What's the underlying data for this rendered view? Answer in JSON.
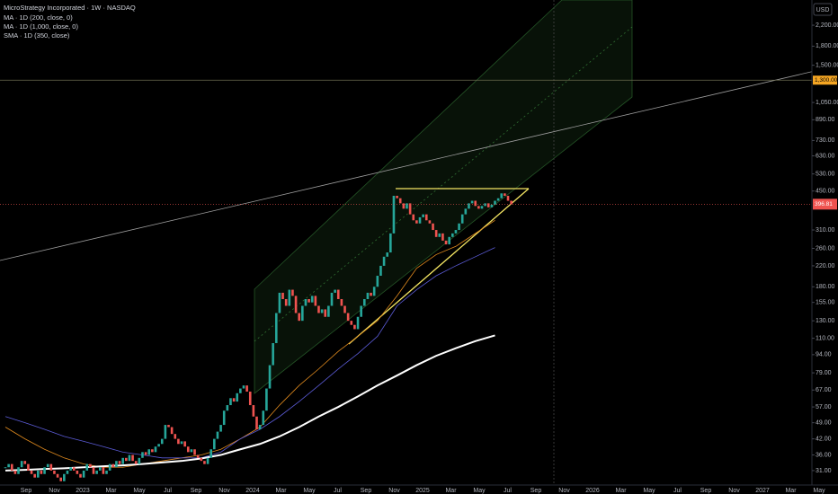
{
  "chart_data": {
    "type": "candlestick",
    "title": "MicroStrategy Incorporated · 1W · NASDAQ",
    "indicator_labels": [
      "MA · 1D (200, close, 0)",
      "MA · 1D (1,000, close, 0)",
      "SMA · 1D (350, close)"
    ],
    "currency": "USD",
    "log_scale": true,
    "ylim": [
      27,
      2800
    ],
    "yticks": [
      {
        "value": 2200,
        "label": "2,200.00"
      },
      {
        "value": 1800,
        "label": "1,800.00"
      },
      {
        "value": 1500,
        "label": "1,500.00"
      },
      {
        "value": 1050,
        "label": "1,050.00"
      },
      {
        "value": 890,
        "label": "890.00"
      },
      {
        "value": 730,
        "label": "730.00"
      },
      {
        "value": 630,
        "label": "630.00"
      },
      {
        "value": 530,
        "label": "530.00"
      },
      {
        "value": 450,
        "label": "450.00"
      },
      {
        "value": 310,
        "label": "310.00"
      },
      {
        "value": 260,
        "label": "260.00"
      },
      {
        "value": 220,
        "label": "220.00"
      },
      {
        "value": 180,
        "label": "180.00"
      },
      {
        "value": 155,
        "label": "155.00"
      },
      {
        "value": 130,
        "label": "130.00"
      },
      {
        "value": 110,
        "label": "110.00"
      },
      {
        "value": 94,
        "label": "94.00"
      },
      {
        "value": 79,
        "label": "79.00"
      },
      {
        "value": 67,
        "label": "67.00"
      },
      {
        "value": 57,
        "label": "57.00"
      },
      {
        "value": 49,
        "label": "49.00"
      },
      {
        "value": 42,
        "label": "42.00"
      },
      {
        "value": 36,
        "label": "36.00"
      },
      {
        "value": 31,
        "label": "31.00"
      }
    ],
    "hline": {
      "value": 1300,
      "label": "1,300.00"
    },
    "price_label": {
      "value": 396.81,
      "label": "396.81"
    },
    "x_labels": [
      "Sep",
      "Nov",
      "2023",
      "Mar",
      "May",
      "Jul",
      "Sep",
      "Nov",
      "2024",
      "Mar",
      "May",
      "Jul",
      "Sep",
      "Nov",
      "2025",
      "Mar",
      "May",
      "Jul",
      "Sep",
      "Nov",
      "2026",
      "Mar",
      "May",
      "Jul",
      "Sep",
      "Nov",
      "2027",
      "Mar",
      "May"
    ],
    "up_color": "#26a69a",
    "down_color": "#ef5350",
    "closes": [
      32,
      33,
      31,
      30,
      32,
      34,
      33,
      31,
      30,
      29,
      31,
      30,
      32,
      33,
      31,
      30,
      29,
      28,
      30,
      31,
      32,
      31,
      30,
      29,
      31,
      33,
      32,
      30,
      31,
      32,
      30,
      31,
      33,
      32,
      34,
      33,
      35,
      34,
      36,
      34,
      33,
      35,
      37,
      36,
      38,
      37,
      39,
      40,
      42,
      48,
      47,
      44,
      42,
      40,
      41,
      39,
      37,
      38,
      36,
      35,
      34,
      33,
      35,
      38,
      42,
      45,
      48,
      55,
      58,
      62,
      60,
      65,
      68,
      70,
      66,
      58,
      52,
      46,
      48,
      55,
      68,
      85,
      105,
      140,
      170,
      160,
      150,
      175,
      165,
      140,
      130,
      150,
      160,
      155,
      165,
      150,
      140,
      145,
      135,
      150,
      170,
      175,
      160,
      150,
      140,
      130,
      125,
      120,
      135,
      150,
      160,
      170,
      165,
      180,
      200,
      220,
      240,
      250,
      300,
      430,
      420,
      400,
      380,
      400,
      360,
      340,
      330,
      350,
      360,
      340,
      330,
      310,
      290,
      300,
      280,
      270,
      290,
      300,
      310,
      330,
      360,
      380,
      400,
      410,
      390,
      380,
      390,
      400,
      385,
      395,
      410,
      420,
      440,
      430,
      410,
      396.81
    ],
    "series": [
      {
        "name": "MA · 1D (200, close, 0)",
        "color": "#e08a1e",
        "values": [
          47,
          42,
          38,
          35,
          33,
          32,
          32,
          33,
          34,
          35,
          36,
          38,
          42,
          47,
          58,
          70,
          82,
          97,
          112,
          130,
          165,
          215,
          245,
          265,
          300,
          340
        ]
      },
      {
        "name": "MA · 1D (1,000, close, 0)",
        "color": "#5b5bd6",
        "values": [
          52,
          49,
          46,
          43,
          41,
          39,
          37,
          36,
          35,
          35,
          35,
          37,
          42,
          46,
          52,
          60,
          70,
          82,
          95,
          112,
          150,
          175,
          200,
          220,
          240,
          262
        ]
      },
      {
        "name": "SMA · 1D (350, close)",
        "color": "#ffffff",
        "values": [
          31,
          31.2,
          31.5,
          31.7,
          32,
          32.3,
          32.6,
          33,
          33.5,
          34,
          34.8,
          36,
          38,
          40,
          43,
          47,
          52,
          57,
          63,
          70,
          77,
          85,
          93,
          100,
          107,
          113
        ]
      }
    ]
  }
}
